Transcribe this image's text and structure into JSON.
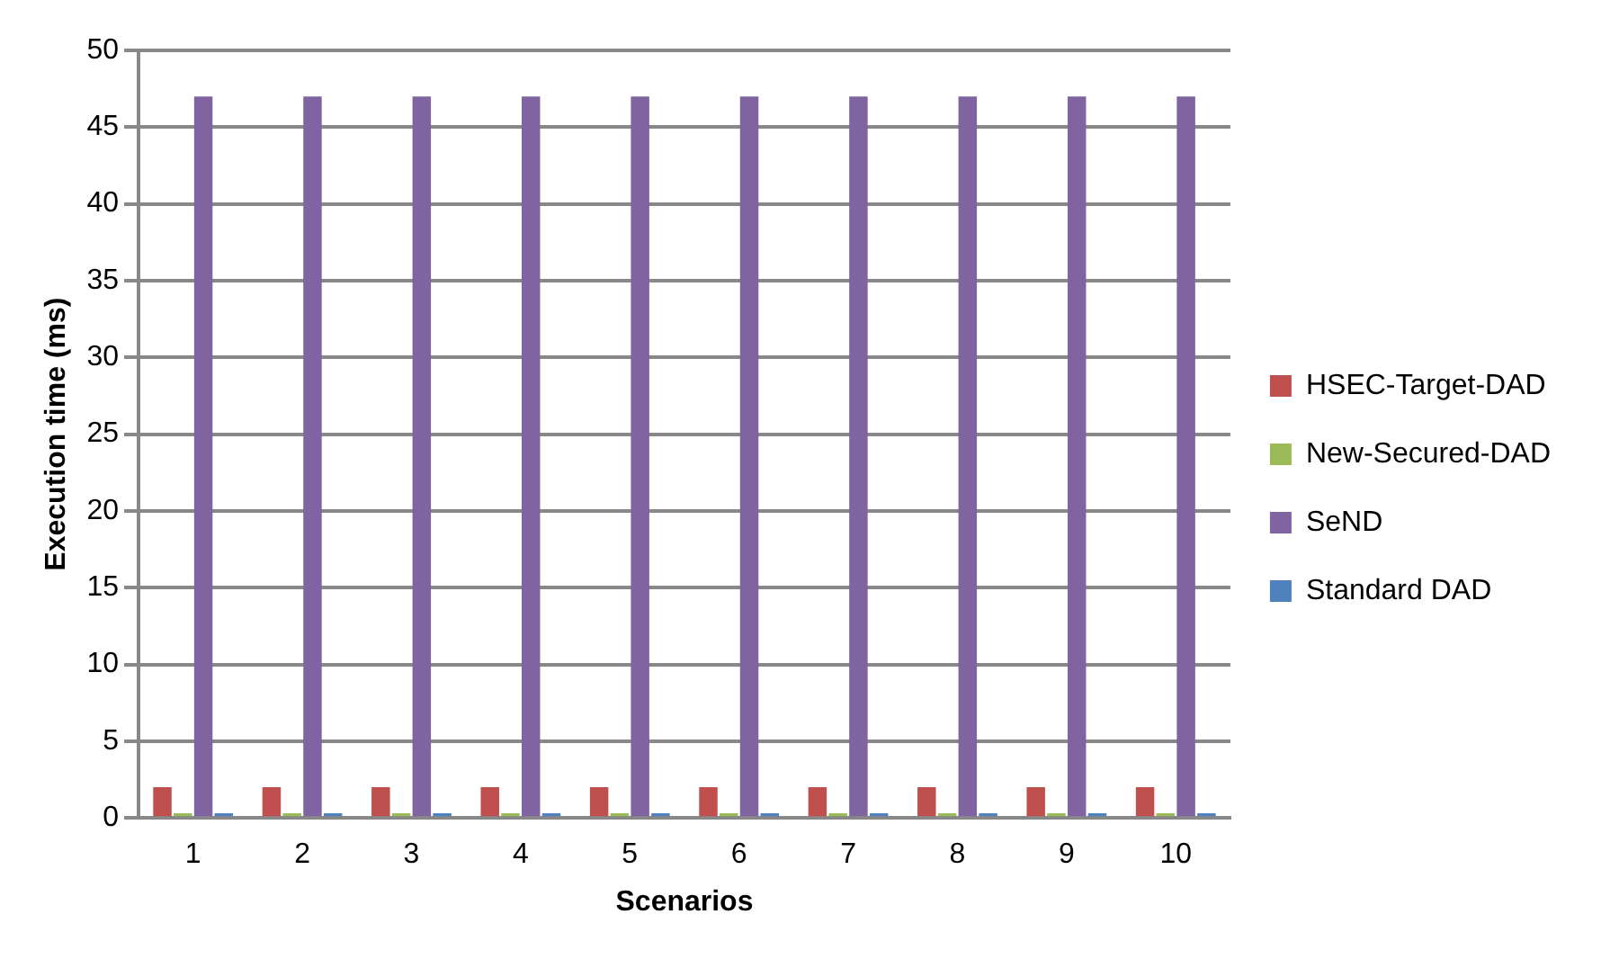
{
  "chart_data": {
    "type": "bar",
    "xlabel": "Scenarios",
    "ylabel": "Execution time (ms)",
    "categories": [
      "1",
      "2",
      "3",
      "4",
      "5",
      "6",
      "7",
      "8",
      "9",
      "10"
    ],
    "series": [
      {
        "name": "HSEC-Target-DAD",
        "color": "#c0504d",
        "values": [
          2,
          2,
          2,
          2,
          2,
          2,
          2,
          2,
          2,
          2
        ]
      },
      {
        "name": "New-Secured-DAD",
        "color": "#9bbb59",
        "values": [
          0.3,
          0.3,
          0.3,
          0.3,
          0.3,
          0.3,
          0.3,
          0.3,
          0.3,
          0.3
        ]
      },
      {
        "name": "SeND",
        "color": "#8064a2",
        "values": [
          47,
          47,
          47,
          47,
          47,
          47,
          47,
          47,
          47,
          47
        ]
      },
      {
        "name": "Standard DAD",
        "color": "#4f81bd",
        "values": [
          0.3,
          0.3,
          0.3,
          0.3,
          0.3,
          0.3,
          0.3,
          0.3,
          0.3,
          0.3
        ]
      }
    ],
    "ylim": [
      0,
      50
    ],
    "yticks": [
      0,
      5,
      10,
      15,
      20,
      25,
      30,
      35,
      40,
      45,
      50
    ],
    "grid": "y",
    "legend": "right"
  }
}
